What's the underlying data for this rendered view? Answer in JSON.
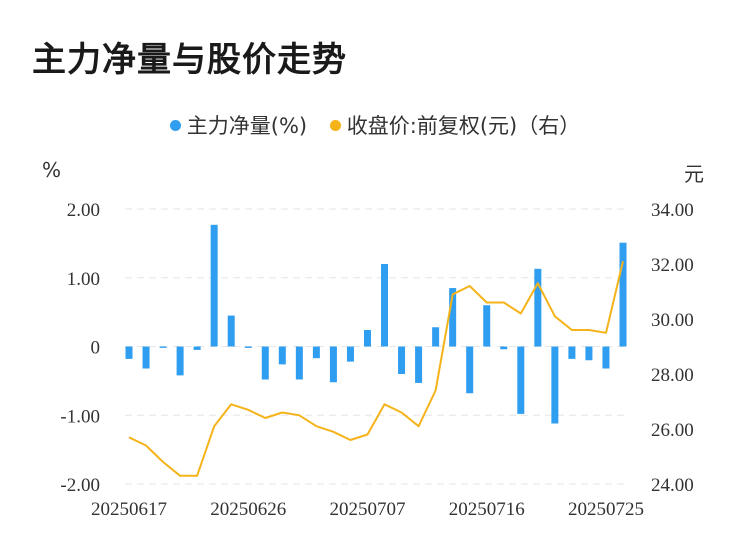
{
  "title": "主力净量与股价走势",
  "legend": {
    "series1": "主力净量(%)",
    "series2": "收盘价:前复权(元)（右）"
  },
  "units": {
    "left": "%",
    "right": "元"
  },
  "colors": {
    "bar": "#2f9ef0",
    "line": "#f5b31a",
    "grid": "#e6e6e6",
    "text": "#333333"
  },
  "chart_data": {
    "type": "bar",
    "x": [
      "20250617",
      "20250618",
      "20250619",
      "20250620",
      "20250623",
      "20250624",
      "20250625",
      "20250626",
      "20250627",
      "20250630",
      "20250701",
      "20250702",
      "20250703",
      "20250704",
      "20250707",
      "20250708",
      "20250709",
      "20250710",
      "20250711",
      "20250714",
      "20250715",
      "20250716",
      "20250717",
      "20250718",
      "20250721",
      "20250722",
      "20250723",
      "20250724",
      "20250725",
      "20250728"
    ],
    "x_tick_labels": [
      "20250617",
      "20250626",
      "20250707",
      "20250716",
      "20250725"
    ],
    "series": [
      {
        "name": "主力净量(%)",
        "type": "bar",
        "axis": "left",
        "values": [
          -0.18,
          -0.32,
          -0.02,
          -0.42,
          -0.05,
          1.77,
          0.45,
          -0.02,
          -0.48,
          -0.26,
          -0.48,
          -0.17,
          -0.52,
          -0.22,
          0.24,
          1.2,
          -0.4,
          -0.53,
          0.28,
          0.85,
          -0.68,
          0.6,
          -0.04,
          -0.98,
          1.13,
          -1.12,
          -0.18,
          -0.2,
          -0.32,
          1.51
        ]
      },
      {
        "name": "收盘价:前复权(元)（右）",
        "type": "line",
        "axis": "right",
        "values": [
          25.7,
          25.4,
          24.8,
          24.3,
          24.3,
          26.1,
          26.9,
          26.7,
          26.4,
          26.6,
          26.5,
          26.1,
          25.9,
          25.6,
          25.8,
          26.9,
          26.6,
          26.1,
          27.4,
          30.9,
          31.2,
          30.6,
          30.6,
          30.2,
          31.3,
          30.1,
          29.6,
          29.6,
          29.5,
          32.1
        ]
      }
    ],
    "y_left": {
      "ticks": [
        "2.00",
        "1.00",
        "0",
        "-1.00",
        "-2.00"
      ],
      "range": [
        -2,
        2
      ]
    },
    "y_right": {
      "ticks": [
        "34.00",
        "32.00",
        "30.00",
        "28.00",
        "26.00",
        "24.00"
      ],
      "range": [
        24,
        34
      ]
    },
    "grid": true,
    "legend_position": "top-center"
  }
}
